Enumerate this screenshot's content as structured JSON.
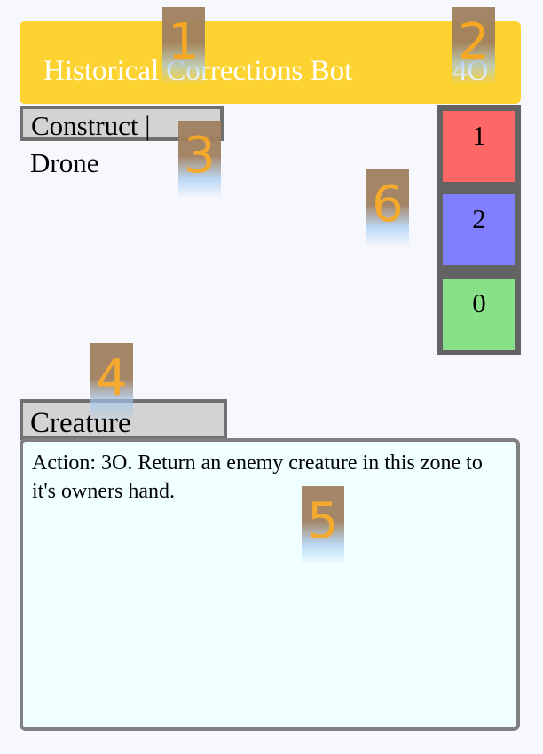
{
  "card": {
    "title": "Historical Corrections Bot",
    "cost": "4O",
    "subtype_line1": "Construct |",
    "subtype_line2": "Drone",
    "type": "Creature",
    "rules_text": "Action: 3O. Return an enemy creature in this zone to it's owners hand.",
    "stats": {
      "red": "1",
      "blue": "2",
      "green": "0"
    }
  },
  "badges": [
    "1",
    "2",
    "3",
    "4",
    "5",
    "6"
  ],
  "colors": {
    "title_bar": "#fdd331",
    "stat_red": "#ff6766",
    "stat_blue": "#8080ff",
    "stat_green": "#88e088",
    "rules_bg": "#f0ffff",
    "label_bg": "#d3d3d3",
    "badge_number": "#f5a623"
  }
}
